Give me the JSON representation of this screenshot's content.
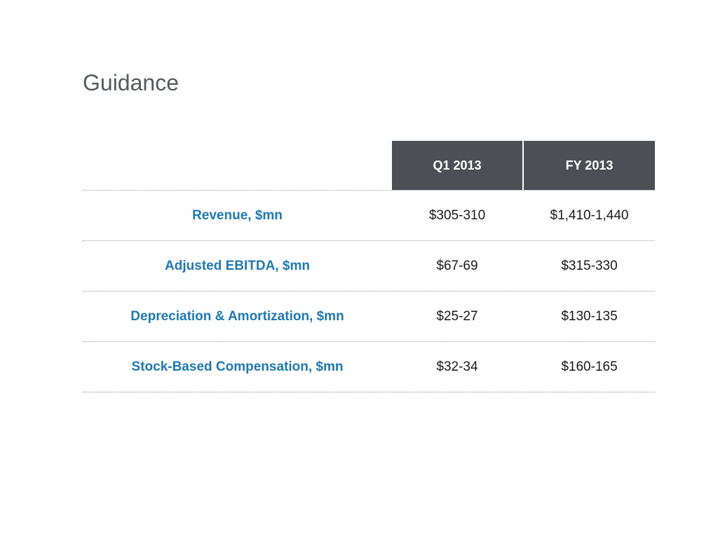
{
  "slide": {
    "title": "Guidance"
  },
  "table": {
    "columns": [
      "",
      "Q1 2013",
      "FY 2013"
    ],
    "rows": [
      {
        "label": "Revenue, $mn",
        "q1": "$305-310",
        "fy": "$1,410-1,440"
      },
      {
        "label": "Adjusted EBITDA, $mn",
        "q1": "$67-69",
        "fy": "$315-330"
      },
      {
        "label": "Depreciation & Amortization, $mn",
        "q1": "$25-27",
        "fy": "$130-135"
      },
      {
        "label": "Stock-Based Compensation, $mn",
        "q1": "$32-34",
        "fy": "$160-165"
      }
    ]
  },
  "colors": {
    "header_background": "#4c4f54",
    "header_text": "#ffffff",
    "label_text": "#1f78b4",
    "title_text": "#555a5f"
  }
}
